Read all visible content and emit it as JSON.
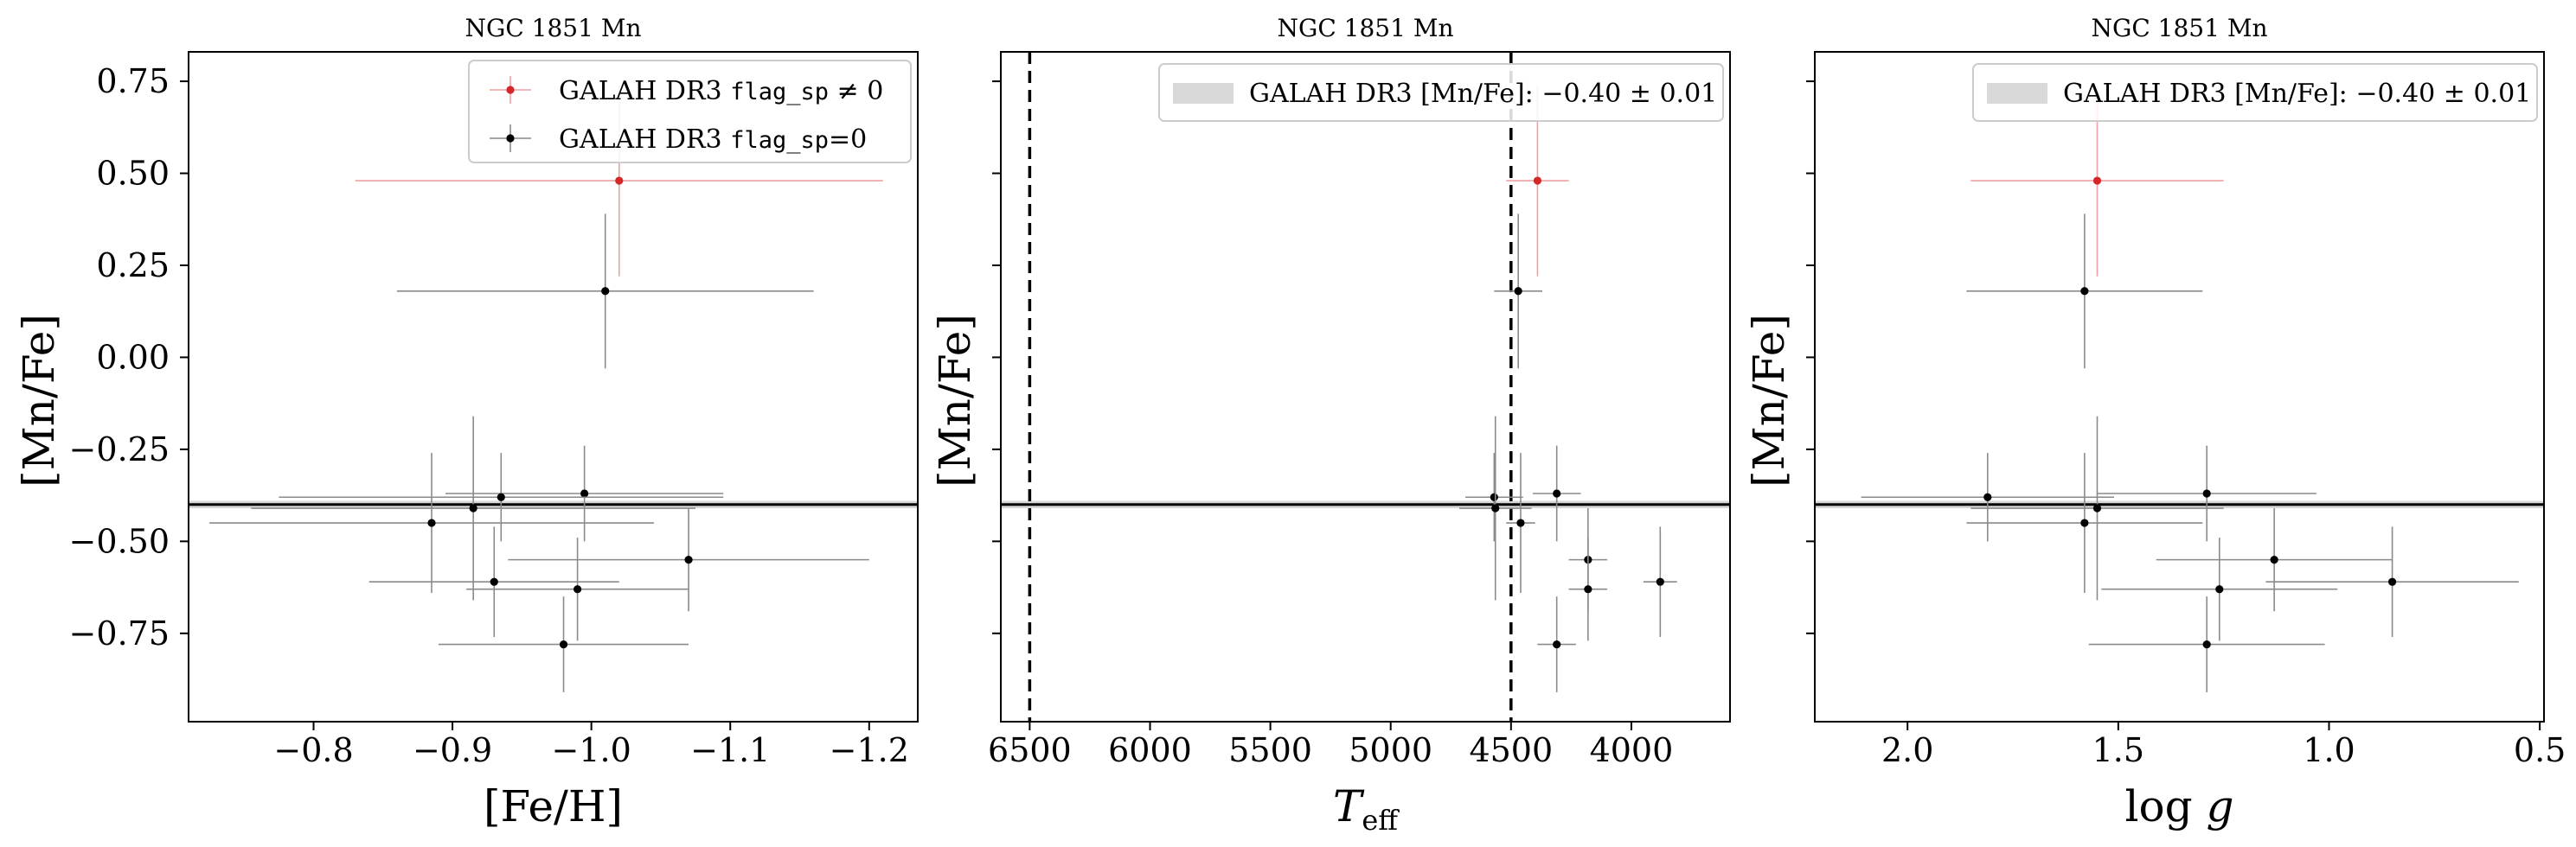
{
  "chart_data": [
    {
      "type": "scatter",
      "title": "NGC 1851 Mn",
      "xlabel": "[Fe/H]",
      "ylabel": "[Mn/Fe]",
      "x_inverted": true,
      "xlim": [
        -0.71,
        -1.235
      ],
      "ylim": [
        -0.99,
        0.83
      ],
      "x_ticks": [
        -0.8,
        -0.9,
        -1.0,
        -1.1,
        -1.2
      ],
      "x_tick_labels": [
        "−0.8",
        "−0.9",
        "−1.0",
        "−1.1",
        "−1.2"
      ],
      "y_ticks": [
        0.75,
        0.5,
        0.25,
        0.0,
        -0.25,
        -0.5,
        -0.75
      ],
      "y_tick_labels": [
        "0.75",
        "0.50",
        "0.25",
        "0.00",
        "−0.25",
        "−0.50",
        "−0.75"
      ],
      "reference_value": -0.4,
      "legend_position": "upper right",
      "legend": [
        {
          "prefix": "GALAH DR3 ",
          "code": "flag_sp",
          "suffix": " ≠ 0",
          "color": "#d62728"
        },
        {
          "prefix": "GALAH DR3 ",
          "code": "flag_sp",
          "suffix": "=0",
          "color": "#000000"
        }
      ],
      "series": [
        {
          "name": "GALAH DR3 flag_sp ≠ 0",
          "color": "#d62728",
          "points": [
            {
              "x": -1.02,
              "y": 0.48,
              "xerr": 0.19,
              "yerr": 0.26
            }
          ]
        },
        {
          "name": "GALAH DR3 flag_sp=0",
          "color": "#000000",
          "points": [
            {
              "x": -1.01,
              "y": 0.18,
              "xerr": 0.15,
              "yerr": 0.21
            },
            {
              "x": -0.995,
              "y": -0.37,
              "xerr": 0.1,
              "yerr": 0.13
            },
            {
              "x": -0.935,
              "y": -0.38,
              "xerr": 0.16,
              "yerr": 0.12
            },
            {
              "x": -0.915,
              "y": -0.41,
              "xerr": 0.16,
              "yerr": 0.25
            },
            {
              "x": -0.885,
              "y": -0.45,
              "xerr": 0.16,
              "yerr": 0.19
            },
            {
              "x": -1.07,
              "y": -0.55,
              "xerr": 0.13,
              "yerr": 0.14
            },
            {
              "x": -0.93,
              "y": -0.61,
              "xerr": 0.09,
              "yerr": 0.15
            },
            {
              "x": -0.99,
              "y": -0.63,
              "xerr": 0.08,
              "yerr": 0.14
            },
            {
              "x": -0.98,
              "y": -0.78,
              "xerr": 0.09,
              "yerr": 0.13
            }
          ]
        }
      ]
    },
    {
      "type": "scatter",
      "title": "NGC 1851 Mn",
      "xlabel": "T_eff",
      "ylabel": "[Mn/Fe]",
      "x_inverted": true,
      "xlim": [
        6620,
        3590
      ],
      "ylim": [
        -0.99,
        0.83
      ],
      "x_ticks": [
        6500,
        6000,
        5500,
        5000,
        4500,
        4000
      ],
      "x_tick_labels": [
        "6500",
        "6000",
        "5500",
        "5000",
        "4500",
        "4000"
      ],
      "y_ticks": [
        0.75,
        0.5,
        0.25,
        0.0,
        -0.25,
        -0.5,
        -0.75
      ],
      "vlines": [
        6500,
        4500
      ],
      "reference_value": -0.4,
      "legend_position": "upper right",
      "legend": [
        {
          "prefix": "GALAH DR3 [Mn/Fe]: ",
          "value": "−0.40 ± 0.01"
        }
      ],
      "series": [
        {
          "name": "GALAH DR3 flag_sp ≠ 0",
          "color": "#d62728",
          "points": [
            {
              "x": 4390,
              "y": 0.48,
              "xerr": 130,
              "yerr": 0.26
            }
          ]
        },
        {
          "name": "GALAH DR3 flag_sp=0",
          "color": "#000000",
          "points": [
            {
              "x": 4470,
              "y": 0.18,
              "xerr": 100,
              "yerr": 0.21
            },
            {
              "x": 4310,
              "y": -0.37,
              "xerr": 100,
              "yerr": 0.13
            },
            {
              "x": 4570,
              "y": -0.38,
              "xerr": 120,
              "yerr": 0.12
            },
            {
              "x": 4565,
              "y": -0.41,
              "xerr": 150,
              "yerr": 0.25
            },
            {
              "x": 4460,
              "y": -0.45,
              "xerr": 60,
              "yerr": 0.19
            },
            {
              "x": 4180,
              "y": -0.55,
              "xerr": 80,
              "yerr": 0.14
            },
            {
              "x": 4180,
              "y": -0.63,
              "xerr": 80,
              "yerr": 0.14
            },
            {
              "x": 3880,
              "y": -0.61,
              "xerr": 70,
              "yerr": 0.15
            },
            {
              "x": 4310,
              "y": -0.78,
              "xerr": 80,
              "yerr": 0.13
            }
          ]
        }
      ]
    },
    {
      "type": "scatter",
      "title": "NGC 1851 Mn",
      "xlabel": "log g",
      "ylabel": "[Mn/Fe]",
      "x_inverted": true,
      "xlim": [
        2.22,
        0.49
      ],
      "ylim": [
        -0.99,
        0.83
      ],
      "x_ticks": [
        2.0,
        1.5,
        1.0,
        0.5
      ],
      "x_tick_labels": [
        "2.0",
        "1.5",
        "1.0",
        "0.5"
      ],
      "y_ticks": [
        0.75,
        0.5,
        0.25,
        0.0,
        -0.25,
        -0.5,
        -0.75
      ],
      "reference_value": -0.4,
      "legend_position": "upper right",
      "legend": [
        {
          "prefix": "GALAH DR3 [Mn/Fe]: ",
          "value": "−0.40 ± 0.01"
        }
      ],
      "series": [
        {
          "name": "GALAH DR3 flag_sp ≠ 0",
          "color": "#d62728",
          "points": [
            {
              "x": 1.55,
              "y": 0.48,
              "xerr": 0.3,
              "yerr": 0.26
            }
          ]
        },
        {
          "name": "GALAH DR3 flag_sp=0",
          "color": "#000000",
          "points": [
            {
              "x": 1.58,
              "y": 0.18,
              "xerr": 0.28,
              "yerr": 0.21
            },
            {
              "x": 1.29,
              "y": -0.37,
              "xerr": 0.26,
              "yerr": 0.13
            },
            {
              "x": 1.81,
              "y": -0.38,
              "xerr": 0.3,
              "yerr": 0.12
            },
            {
              "x": 1.55,
              "y": -0.41,
              "xerr": 0.3,
              "yerr": 0.25
            },
            {
              "x": 1.58,
              "y": -0.45,
              "xerr": 0.28,
              "yerr": 0.19
            },
            {
              "x": 1.13,
              "y": -0.55,
              "xerr": 0.28,
              "yerr": 0.14
            },
            {
              "x": 0.85,
              "y": -0.61,
              "xerr": 0.3,
              "yerr": 0.15
            },
            {
              "x": 1.26,
              "y": -0.63,
              "xerr": 0.28,
              "yerr": 0.14
            },
            {
              "x": 1.29,
              "y": -0.78,
              "xerr": 0.28,
              "yerr": 0.13
            }
          ]
        }
      ]
    }
  ]
}
